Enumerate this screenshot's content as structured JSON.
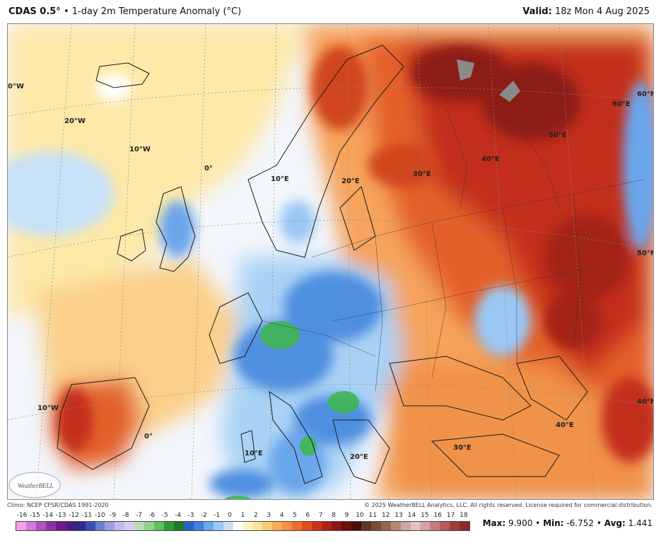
{
  "header": {
    "model": "CDAS 0.5°",
    "separator": "•",
    "product": "1-day 2m Temperature Anomaly (°C)",
    "valid_label": "Valid:",
    "valid_time": "18z Mon 4 Aug 2025"
  },
  "map": {
    "labels": [
      "0°W",
      "20°W",
      "10°W",
      "0°",
      "10°E",
      "20°E",
      "30°E",
      "40°E",
      "50°E",
      "60°E",
      "60°N",
      "50°N",
      "40°N",
      "10°W",
      "0°",
      "10°E",
      "20°E",
      "30°E",
      "40°E"
    ],
    "logo_text": "WeatherBELL",
    "colors": {
      "ocean_neutral": "#f3f6fb",
      "pale_yellow": "#fde9a8",
      "orange": "#f6a35b",
      "deep_orange": "#e4602b",
      "red": "#c32f1a",
      "dark_red": "#8c1a12",
      "light_blue": "#a9d2f5",
      "blue": "#4f8fe0",
      "dark_blue": "#2a56c8",
      "green": "#3cb84a"
    }
  },
  "footer": {
    "climo": "Climo: NCEP CFSR/CDAS 1991-2020",
    "copyright": "© 2025 WeatherBELL Analytics, LLC. All rights reserved. License required for commercial distribution."
  },
  "legend": {
    "ticks": [
      "-16",
      "-15",
      "-14",
      "-13",
      "-12",
      "-11",
      "-10",
      "-9",
      "-8",
      "-7",
      "-6",
      "-5",
      "-4",
      "-3",
      "-2",
      "-1",
      "0",
      "1",
      "2",
      "3",
      "4",
      "5",
      "6",
      "7",
      "8",
      "9",
      "10",
      "11",
      "12",
      "13",
      "14",
      "15",
      "16",
      "17",
      "18"
    ],
    "colors": [
      "#f2a3e8",
      "#d478d6",
      "#b152bd",
      "#8e2fa3",
      "#6b1b8a",
      "#4a1a82",
      "#2b2a92",
      "#3a4fb6",
      "#6c7ed1",
      "#9d9de4",
      "#bcbcef",
      "#d9c9f3",
      "#b4e0b0",
      "#8fd48a",
      "#5fc15a",
      "#2e9c3a",
      "#1c7a2a",
      "#2d5fc4",
      "#3f7fe0",
      "#6aa6ec",
      "#9ac7f4",
      "#c7e1f8",
      "#ffffff",
      "#fff3c4",
      "#fde49a",
      "#fbca72",
      "#f8ad55",
      "#f48f3f",
      "#ea6e2d",
      "#dc4e22",
      "#c7341a",
      "#ac2215",
      "#8d1710",
      "#6d0f0c",
      "#4a0b08",
      "#5d3624",
      "#7a4a32",
      "#9a6450",
      "#b8857a",
      "#cfa6a0",
      "#e2c5c2",
      "#d8a0a0",
      "#c77a7a",
      "#b65a5a",
      "#a23c3c",
      "#8a2a2a"
    ]
  },
  "stats": {
    "max_label": "Max:",
    "max_value": "9.900",
    "min_label": "Min:",
    "min_value": "-6.752",
    "avg_label": "Avg:",
    "avg_value": "1.441",
    "sep": "•"
  }
}
